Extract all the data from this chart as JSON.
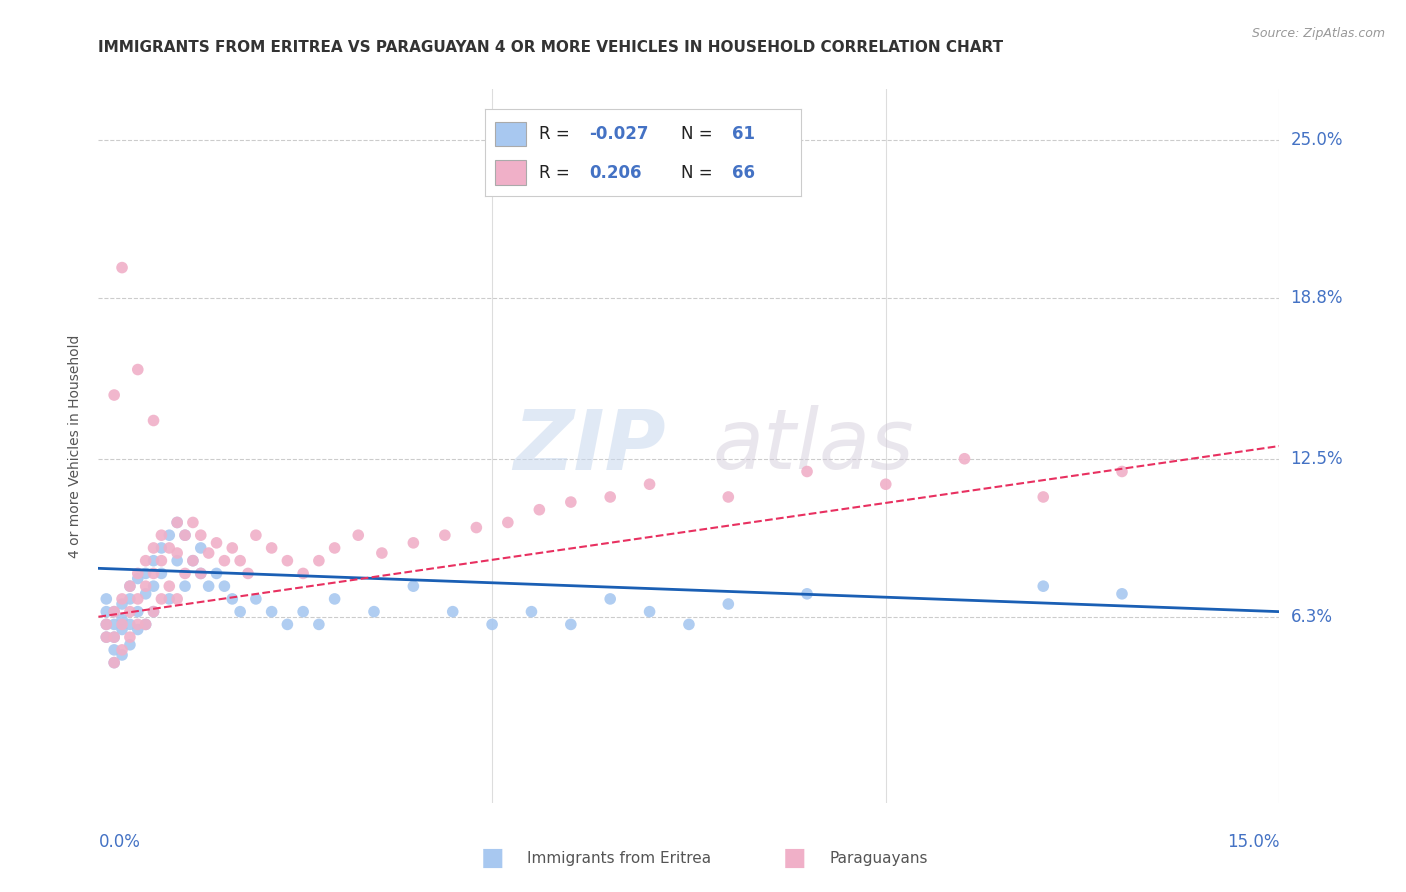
{
  "title": "IMMIGRANTS FROM ERITREA VS PARAGUAYAN 4 OR MORE VEHICLES IN HOUSEHOLD CORRELATION CHART",
  "source": "Source: ZipAtlas.com",
  "ylabel": "4 or more Vehicles in Household",
  "yticks": [
    0.0,
    0.063,
    0.125,
    0.188,
    0.25
  ],
  "ytick_labels": [
    "",
    "6.3%",
    "12.5%",
    "18.8%",
    "25.0%"
  ],
  "xlim": [
    0.0,
    0.15
  ],
  "ylim": [
    -0.01,
    0.27
  ],
  "series1": {
    "name": "Immigrants from Eritrea",
    "color": "#a8c8f0",
    "R": -0.027,
    "N": 61,
    "line_color": "#1a5fb4",
    "points_x": [
      0.001,
      0.001,
      0.001,
      0.001,
      0.002,
      0.002,
      0.002,
      0.002,
      0.002,
      0.003,
      0.003,
      0.003,
      0.003,
      0.004,
      0.004,
      0.004,
      0.004,
      0.005,
      0.005,
      0.005,
      0.006,
      0.006,
      0.006,
      0.007,
      0.007,
      0.007,
      0.008,
      0.008,
      0.009,
      0.009,
      0.01,
      0.01,
      0.011,
      0.011,
      0.012,
      0.013,
      0.013,
      0.014,
      0.015,
      0.016,
      0.017,
      0.018,
      0.02,
      0.022,
      0.024,
      0.026,
      0.028,
      0.03,
      0.035,
      0.04,
      0.045,
      0.05,
      0.055,
      0.06,
      0.065,
      0.07,
      0.075,
      0.08,
      0.09,
      0.12,
      0.13
    ],
    "points_y": [
      0.06,
      0.065,
      0.055,
      0.07,
      0.065,
      0.06,
      0.055,
      0.05,
      0.045,
      0.068,
      0.062,
      0.058,
      0.048,
      0.075,
      0.07,
      0.06,
      0.052,
      0.078,
      0.065,
      0.058,
      0.08,
      0.072,
      0.06,
      0.085,
      0.075,
      0.065,
      0.09,
      0.08,
      0.095,
      0.07,
      0.1,
      0.085,
      0.095,
      0.075,
      0.085,
      0.09,
      0.08,
      0.075,
      0.08,
      0.075,
      0.07,
      0.065,
      0.07,
      0.065,
      0.06,
      0.065,
      0.06,
      0.07,
      0.065,
      0.075,
      0.065,
      0.06,
      0.065,
      0.06,
      0.07,
      0.065,
      0.06,
      0.068,
      0.072,
      0.075,
      0.072
    ],
    "trend_x0": 0.0,
    "trend_y0": 0.082,
    "trend_x1": 0.15,
    "trend_y1": 0.065
  },
  "series2": {
    "name": "Paraguayans",
    "color": "#f0b0c8",
    "R": 0.206,
    "N": 66,
    "line_color": "#e83060",
    "points_x": [
      0.001,
      0.001,
      0.002,
      0.002,
      0.002,
      0.003,
      0.003,
      0.003,
      0.004,
      0.004,
      0.004,
      0.005,
      0.005,
      0.005,
      0.006,
      0.006,
      0.006,
      0.007,
      0.007,
      0.007,
      0.008,
      0.008,
      0.008,
      0.009,
      0.009,
      0.01,
      0.01,
      0.01,
      0.011,
      0.011,
      0.012,
      0.012,
      0.013,
      0.013,
      0.014,
      0.015,
      0.016,
      0.017,
      0.018,
      0.019,
      0.02,
      0.022,
      0.024,
      0.026,
      0.028,
      0.03,
      0.033,
      0.036,
      0.04,
      0.044,
      0.048,
      0.052,
      0.056,
      0.06,
      0.065,
      0.07,
      0.08,
      0.09,
      0.1,
      0.11,
      0.12,
      0.13,
      0.002,
      0.003,
      0.005,
      0.007
    ],
    "points_y": [
      0.06,
      0.055,
      0.065,
      0.055,
      0.045,
      0.07,
      0.06,
      0.05,
      0.075,
      0.065,
      0.055,
      0.08,
      0.07,
      0.06,
      0.085,
      0.075,
      0.06,
      0.09,
      0.08,
      0.065,
      0.095,
      0.085,
      0.07,
      0.09,
      0.075,
      0.1,
      0.088,
      0.07,
      0.095,
      0.08,
      0.1,
      0.085,
      0.095,
      0.08,
      0.088,
      0.092,
      0.085,
      0.09,
      0.085,
      0.08,
      0.095,
      0.09,
      0.085,
      0.08,
      0.085,
      0.09,
      0.095,
      0.088,
      0.092,
      0.095,
      0.098,
      0.1,
      0.105,
      0.108,
      0.11,
      0.115,
      0.11,
      0.12,
      0.115,
      0.125,
      0.11,
      0.12,
      0.15,
      0.2,
      0.16,
      0.14
    ],
    "trend_x0": 0.0,
    "trend_y0": 0.063,
    "trend_x1": 0.15,
    "trend_y1": 0.13
  },
  "background_color": "#ffffff",
  "grid_color": "#cccccc",
  "title_fontsize": 11,
  "axis_label_color": "#4472c4",
  "watermark_zip": "ZIP",
  "watermark_atlas": "atlas"
}
